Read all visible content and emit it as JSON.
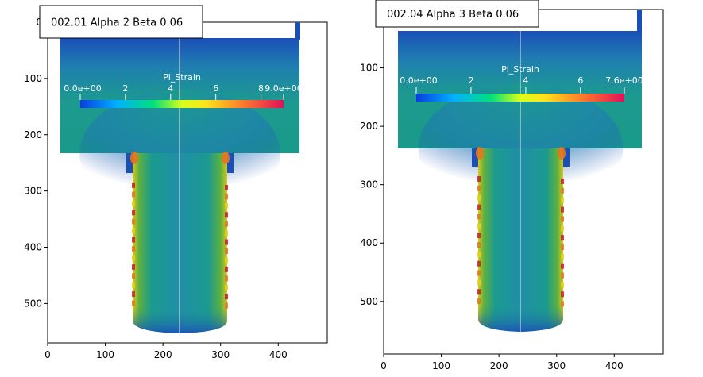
{
  "chart_data": [
    {
      "type": "heatmap",
      "title": "002.01 Alpha 2 Beta 0.06",
      "x_ticks": [
        0,
        100,
        200,
        300,
        400
      ],
      "y_ticks": [
        0,
        100,
        200,
        300,
        400,
        500
      ],
      "xlim": [
        0,
        485
      ],
      "ylim": [
        570,
        0
      ],
      "grid": false,
      "colorbar": {
        "title": "Pl_Strain",
        "min_label": "0.0e+00",
        "max_label": "9.0e+00",
        "tick_labels": [
          "2",
          "4",
          "6",
          "8"
        ],
        "tick_values": [
          2,
          4,
          6,
          8
        ],
        "range": [
          0,
          9
        ]
      }
    },
    {
      "type": "heatmap",
      "title": "002.04 Alpha 3 Beta 0.06",
      "x_ticks": [
        0,
        100,
        200,
        300,
        400
      ],
      "y_ticks": [
        100,
        200,
        300,
        400,
        500
      ],
      "xlim": [
        0,
        485
      ],
      "ylim": [
        590,
        0
      ],
      "grid": false,
      "colorbar": {
        "title": "Pl_Strain",
        "min_label": "0.0e+00",
        "max_label": "7.6e+00",
        "tick_labels": [
          "2",
          "4",
          "6"
        ],
        "tick_values": [
          2,
          4,
          6
        ],
        "range": [
          0,
          7.6
        ]
      }
    }
  ],
  "colors": {
    "blue": "#1b4fb8",
    "teal": "#1a9a8a",
    "green": "#3faa3a",
    "yellow": "#e0d21a",
    "orange": "#e4741e",
    "red": "#c8202a",
    "frame": "#000000"
  }
}
